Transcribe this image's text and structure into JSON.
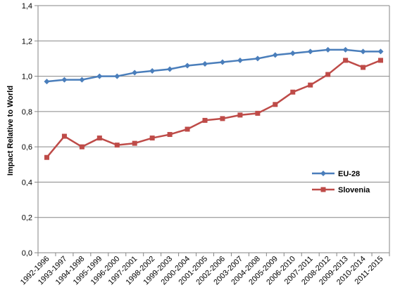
{
  "chart_data": {
    "type": "line",
    "title": "",
    "xlabel": "",
    "ylabel": "Impact Relative to World",
    "ylim": [
      0,
      1.4
    ],
    "yticks": [
      "0,0",
      "0,2",
      "0,4",
      "0,6",
      "0,8",
      "1,0",
      "1,2",
      "1,4"
    ],
    "ytick_values": [
      0,
      0.2,
      0.4,
      0.6,
      0.8,
      1.0,
      1.2,
      1.4
    ],
    "grid": true,
    "legend_position": "right",
    "categories": [
      "1992-1996",
      "1993-1997",
      "1994-1998",
      "1995-1999",
      "1996-2000",
      "1997-2001",
      "1998-2002",
      "1999-2003",
      "2000-2004",
      "2001-2005",
      "2002-2006",
      "2003-2007",
      "2004-2008",
      "2005-2009",
      "2006-2010",
      "2007-2011",
      "2008-2012",
      "2009-2013",
      "2010-2014",
      "2011-2015"
    ],
    "series": [
      {
        "name": "EU-28",
        "color": "#4a7ebb",
        "marker": "diamond",
        "values": [
          0.97,
          0.98,
          0.98,
          1.0,
          1.0,
          1.02,
          1.03,
          1.04,
          1.06,
          1.07,
          1.08,
          1.09,
          1.1,
          1.12,
          1.13,
          1.14,
          1.15,
          1.15,
          1.14,
          1.14
        ]
      },
      {
        "name": "Slovenia",
        "color": "#be4b48",
        "marker": "square",
        "values": [
          0.54,
          0.66,
          0.6,
          0.65,
          0.61,
          0.62,
          0.65,
          0.67,
          0.7,
          0.75,
          0.76,
          0.78,
          0.79,
          0.84,
          0.91,
          0.95,
          1.01,
          1.09,
          1.05,
          1.09
        ]
      }
    ]
  }
}
